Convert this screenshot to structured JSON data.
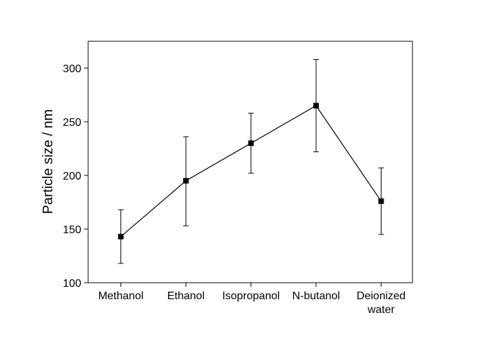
{
  "chart_data": {
    "type": "line",
    "title": "",
    "xlabel": "",
    "ylabel": "Particle size / nm",
    "categories": [
      [
        "Methanol"
      ],
      [
        "Ethanol"
      ],
      [
        "Isopropanol"
      ],
      [
        "N-butanol"
      ],
      [
        "Deionized",
        "water"
      ]
    ],
    "series": [
      {
        "values": [
          143,
          195,
          230,
          265,
          176
        ],
        "error_low": [
          118,
          153,
          202,
          222,
          145
        ],
        "error_high": [
          168,
          236,
          258,
          308,
          207
        ],
        "marker": "square",
        "color": "#000000"
      }
    ],
    "ylim": [
      100,
      325
    ],
    "yticks": [
      100,
      150,
      200,
      250,
      300
    ],
    "grid": false,
    "legend": "none"
  }
}
